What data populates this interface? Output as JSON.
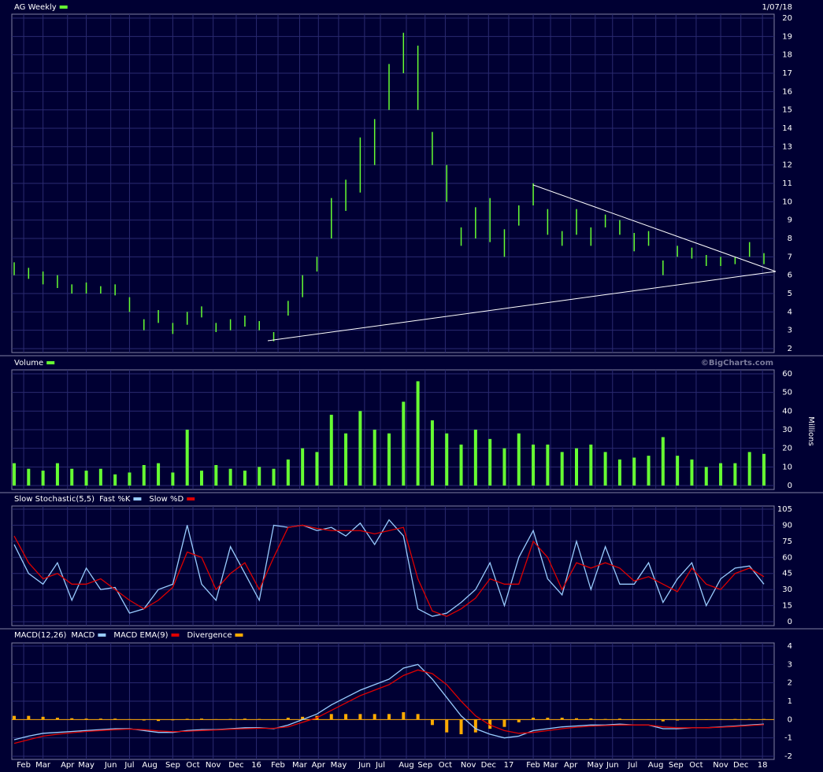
{
  "chart_data": [
    {
      "type": "hilo",
      "date": "1/07/18",
      "series": [
        {
          "name": "AG Weekly",
          "color": "#66ff33",
          "high": [
            6.7,
            6.4,
            6.2,
            6.0,
            5.5,
            5.6,
            5.4,
            5.5,
            4.8,
            3.6,
            4.1,
            3.4,
            4.0,
            4.3,
            3.4,
            3.6,
            3.8,
            3.5,
            2.9,
            4.6,
            6.0,
            7.0,
            10.2,
            11.2,
            13.5,
            14.5,
            17.5,
            19.2,
            18.5,
            13.8,
            12,
            8.6,
            9.7,
            10.2,
            8.5,
            9.8,
            11,
            9.6,
            8.4,
            9.6,
            8.6,
            9.3,
            9.0,
            8.3,
            8.4,
            6.8,
            7.6,
            7.5,
            7.1,
            7.0,
            7.0,
            7.8,
            7.2
          ],
          "low": [
            6.0,
            5.8,
            5.5,
            5.3,
            5.0,
            5.0,
            5.0,
            4.9,
            4.0,
            3.0,
            3.4,
            2.8,
            3.3,
            3.7,
            2.9,
            3.0,
            3.2,
            3.0,
            2.4,
            3.8,
            4.8,
            6.2,
            8.0,
            9.5,
            10.5,
            12,
            15,
            17,
            15,
            12,
            10,
            7.6,
            8,
            7.8,
            7.0,
            8.7,
            9.8,
            8.2,
            7.6,
            8.2,
            7.6,
            8.6,
            8.2,
            7.3,
            7.6,
            6.0,
            7.0,
            6.9,
            6.5,
            6.5,
            6.6,
            7.0,
            6.6
          ]
        }
      ],
      "ylim": [
        2,
        20
      ],
      "yticks": [
        2,
        3,
        4,
        5,
        6,
        7,
        8,
        9,
        10,
        11,
        12,
        13,
        14,
        15,
        16,
        17,
        18,
        19,
        20
      ],
      "grid": true
    },
    {
      "type": "bar",
      "credit": "©BigCharts.com",
      "y_label": "Millions",
      "series": [
        {
          "name": "Volume",
          "color": "#66ff33",
          "values": [
            12,
            9,
            8,
            12,
            9,
            8,
            9,
            6,
            7,
            11,
            12,
            7,
            30,
            8,
            11,
            9,
            8,
            10,
            9,
            14,
            20,
            18,
            38,
            28,
            40,
            30,
            28,
            45,
            56,
            35,
            28,
            22,
            30,
            25,
            20,
            28,
            22,
            22,
            18,
            20,
            22,
            18,
            14,
            15,
            16,
            26,
            16,
            14,
            10,
            12,
            12,
            18,
            17
          ]
        }
      ],
      "ylim": [
        0,
        60
      ],
      "yticks": [
        0,
        10,
        20,
        30,
        40,
        50,
        60
      ],
      "grid": true
    },
    {
      "type": "line",
      "title": "Slow Stochastic(5,5)",
      "series": [
        {
          "name": "Fast %K",
          "color": "#99ccff",
          "values": [
            72,
            45,
            35,
            55,
            20,
            50,
            30,
            32,
            8,
            12,
            30,
            35,
            90,
            35,
            20,
            70,
            45,
            20,
            90,
            88,
            90,
            85,
            88,
            80,
            92,
            72,
            95,
            80,
            12,
            5,
            8,
            18,
            30,
            55,
            15,
            60,
            85,
            40,
            25,
            75,
            30,
            70,
            35,
            35,
            55,
            18,
            40,
            55,
            15,
            40,
            50,
            52,
            35
          ]
        },
        {
          "name": "Slow %D",
          "color": "#dd0000",
          "values": [
            80,
            55,
            40,
            45,
            35,
            35,
            40,
            30,
            20,
            12,
            20,
            32,
            65,
            60,
            30,
            45,
            55,
            30,
            60,
            88,
            90,
            87,
            85,
            85,
            85,
            82,
            85,
            88,
            40,
            10,
            5,
            12,
            22,
            40,
            35,
            35,
            75,
            60,
            30,
            55,
            50,
            55,
            50,
            38,
            42,
            35,
            28,
            50,
            35,
            30,
            45,
            50,
            42
          ]
        }
      ],
      "ylim": [
        0,
        105
      ],
      "yticks": [
        0,
        15,
        30,
        45,
        60,
        75,
        90,
        105
      ],
      "grid": true
    },
    {
      "type": "combo",
      "title": "MACD(12,26)",
      "series": [
        {
          "name": "MACD",
          "type": "line",
          "color": "#99ccff",
          "values": [
            -1.1,
            -0.9,
            -0.75,
            -0.7,
            -0.65,
            -0.6,
            -0.55,
            -0.5,
            -0.5,
            -0.6,
            -0.7,
            -0.7,
            -0.6,
            -0.55,
            -0.55,
            -0.5,
            -0.45,
            -0.45,
            -0.5,
            -0.3,
            0,
            0.3,
            0.8,
            1.2,
            1.6,
            1.9,
            2.2,
            2.8,
            3.0,
            2.2,
            1.2,
            0.2,
            -0.5,
            -0.8,
            -1.0,
            -0.9,
            -0.6,
            -0.5,
            -0.4,
            -0.35,
            -0.3,
            -0.3,
            -0.25,
            -0.3,
            -0.3,
            -0.5,
            -0.5,
            -0.45,
            -0.45,
            -0.4,
            -0.35,
            -0.3,
            -0.25
          ]
        },
        {
          "name": "MACD EMA(9)",
          "type": "line",
          "color": "#dd0000",
          "values": [
            -1.3,
            -1.1,
            -0.9,
            -0.8,
            -0.72,
            -0.65,
            -0.6,
            -0.55,
            -0.52,
            -0.55,
            -0.62,
            -0.66,
            -0.64,
            -0.6,
            -0.57,
            -0.53,
            -0.5,
            -0.48,
            -0.48,
            -0.4,
            -0.15,
            0.1,
            0.5,
            0.9,
            1.3,
            1.6,
            1.9,
            2.4,
            2.7,
            2.5,
            1.9,
            1.0,
            0.2,
            -0.3,
            -0.6,
            -0.75,
            -0.7,
            -0.6,
            -0.5,
            -0.42,
            -0.36,
            -0.33,
            -0.3,
            -0.3,
            -0.3,
            -0.4,
            -0.45,
            -0.45,
            -0.45,
            -0.42,
            -0.38,
            -0.33,
            -0.28
          ]
        },
        {
          "name": "Divergence",
          "type": "bar",
          "color": "#ffaa00",
          "values": [
            0.2,
            0.2,
            0.15,
            0.1,
            0.07,
            0.05,
            0.05,
            0.05,
            0.02,
            -0.05,
            -0.08,
            -0.04,
            0.04,
            0.05,
            0.02,
            0.03,
            0.05,
            0.03,
            -0.02,
            0.1,
            0.15,
            0.2,
            0.3,
            0.3,
            0.3,
            0.3,
            0.3,
            0.4,
            0.3,
            -0.3,
            -0.7,
            -0.8,
            -0.7,
            -0.5,
            -0.4,
            -0.15,
            0.1,
            0.1,
            0.1,
            0.07,
            0.06,
            0.03,
            0.05,
            0,
            0,
            -0.1,
            -0.05,
            0,
            0,
            0.02,
            0.03,
            0.03,
            0.03
          ]
        }
      ],
      "ylim": [
        -2,
        4
      ],
      "yticks": [
        -2,
        -1,
        0,
        1,
        2,
        3,
        4
      ],
      "grid": true,
      "xlim": [
        0,
        52
      ],
      "xticks": [
        {
          "value": 0.66,
          "label": "Feb"
        },
        {
          "value": 2.0,
          "label": "Mar"
        },
        {
          "value": 3.7,
          "label": "Apr"
        },
        {
          "value": 5.0,
          "label": "May"
        },
        {
          "value": 6.7,
          "label": "Jun"
        },
        {
          "value": 8.0,
          "label": "Jul"
        },
        {
          "value": 9.4,
          "label": "Aug"
        },
        {
          "value": 11.0,
          "label": "Sep"
        },
        {
          "value": 12.4,
          "label": "Oct"
        },
        {
          "value": 13.8,
          "label": "Nov"
        },
        {
          "value": 15.4,
          "label": "Dec"
        },
        {
          "value": 16.8,
          "label": "16"
        },
        {
          "value": 18.3,
          "label": "Feb"
        },
        {
          "value": 19.8,
          "label": "Mar"
        },
        {
          "value": 21.1,
          "label": "Apr"
        },
        {
          "value": 22.5,
          "label": "May"
        },
        {
          "value": 24.3,
          "label": "Jun"
        },
        {
          "value": 25.4,
          "label": "Jul"
        },
        {
          "value": 27.2,
          "label": "Aug"
        },
        {
          "value": 28.5,
          "label": "Sep"
        },
        {
          "value": 29.9,
          "label": "Oct"
        },
        {
          "value": 31.5,
          "label": "Nov"
        },
        {
          "value": 32.9,
          "label": "Dec"
        },
        {
          "value": 34.3,
          "label": "17"
        },
        {
          "value": 36.0,
          "label": "Feb"
        },
        {
          "value": 37.2,
          "label": "Mar"
        },
        {
          "value": 38.6,
          "label": "Apr"
        },
        {
          "value": 40.3,
          "label": "May"
        },
        {
          "value": 41.5,
          "label": "Jun"
        },
        {
          "value": 42.9,
          "label": "Jul"
        },
        {
          "value": 44.5,
          "label": "Aug"
        },
        {
          "value": 45.9,
          "label": "Sep"
        },
        {
          "value": 47.3,
          "label": "Oct"
        },
        {
          "value": 49.0,
          "label": "Nov"
        },
        {
          "value": 50.4,
          "label": "Dec"
        },
        {
          "value": 51.9,
          "label": "18"
        }
      ]
    }
  ]
}
